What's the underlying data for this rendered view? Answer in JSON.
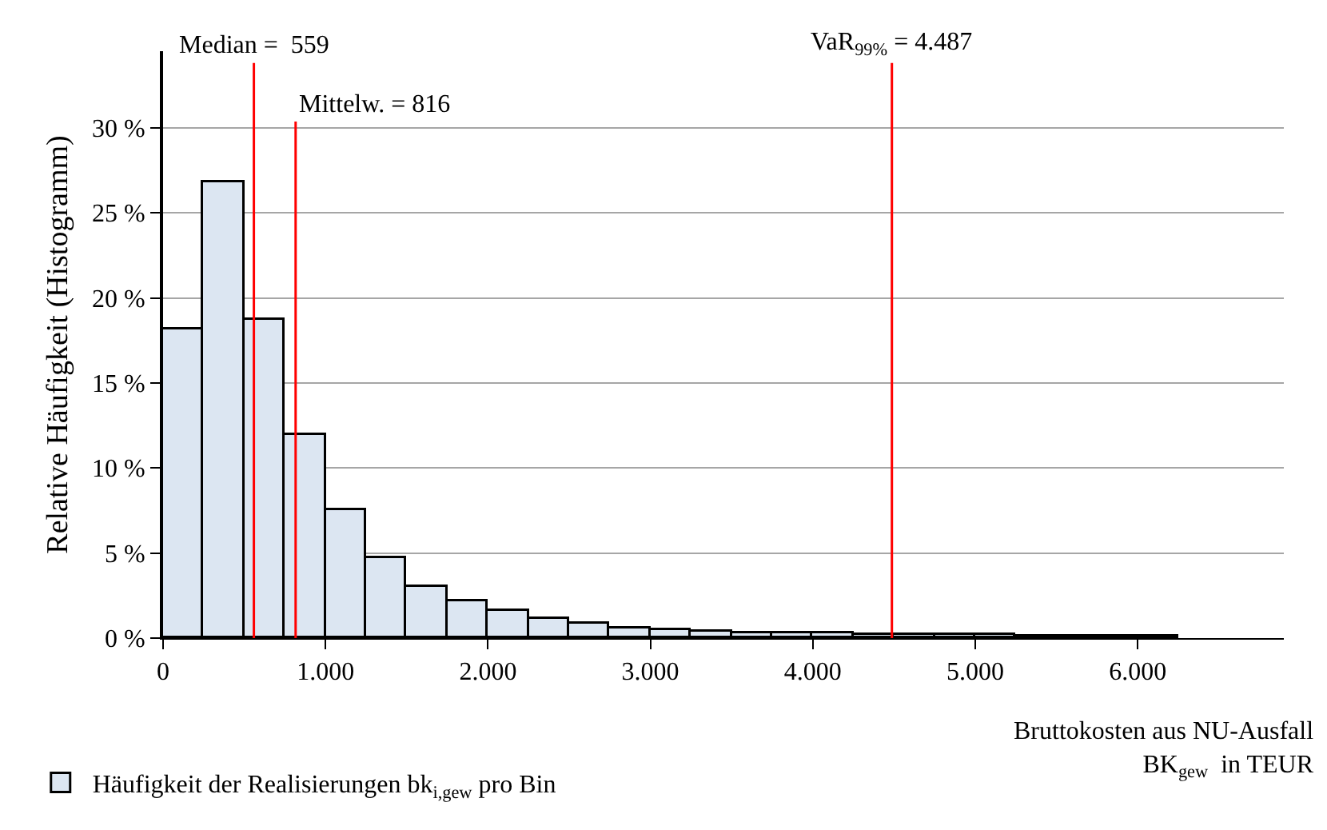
{
  "chart_data": {
    "type": "histogram",
    "ylabel": "Relative Häufigkeit (Histogramm)",
    "xlabel": "Bruttokosten aus NU-Ausfall\nBK$_{gew}$  in TEUR",
    "bins": [
      0,
      250,
      500,
      750,
      1000,
      1250,
      1500,
      1750,
      2000,
      2250,
      2500,
      2750,
      3000,
      3250,
      3500,
      3750,
      4000,
      4250,
      4500,
      4750,
      5000,
      5250,
      5500,
      5750,
      6000,
      6250
    ],
    "series": [
      {
        "name": "Häufigkeit der Realisierungen bk$_{i,gew}$ pro Bin",
        "color": "#dce6f2",
        "values": [
          18.1,
          26.8,
          18.7,
          11.9,
          7.5,
          4.7,
          3.0,
          2.2,
          1.6,
          1.1,
          0.8,
          0.6,
          0.5,
          0.4,
          0.3,
          0.3,
          0.3,
          0.2,
          0.2,
          0.2,
          0.2,
          0.1,
          0.1,
          0.1,
          0.1
        ]
      }
    ],
    "xlim": [
      0,
      6900
    ],
    "xticks": [
      0,
      {
        "value": 1000,
        "label": "1.000"
      },
      {
        "value": 2000,
        "label": "2.000"
      },
      {
        "value": 3000,
        "label": "3.000"
      },
      {
        "value": 4000,
        "label": "4.000"
      },
      {
        "value": 5000,
        "label": "5.000"
      },
      {
        "value": 6000,
        "label": "6.000"
      }
    ],
    "ylim": [
      0,
      34.5
    ],
    "yticks": [
      {
        "value": 0,
        "label": "0 %"
      },
      {
        "value": 5,
        "label": "5 %"
      },
      {
        "value": 10,
        "label": "10 %"
      },
      {
        "value": 15,
        "label": "15 %"
      },
      {
        "value": 20,
        "label": "20 %"
      },
      {
        "value": 25,
        "label": "25 %"
      },
      {
        "value": 30,
        "label": "30 %"
      }
    ],
    "ref_lines": [
      {
        "axis": "x",
        "value": 559,
        "label": "Median =  559",
        "color": "#ff0000"
      },
      {
        "axis": "x",
        "value": 816,
        "label": "Mittelw. = 816",
        "color": "#ff0000"
      },
      {
        "axis": "x",
        "value": 4487,
        "label": "VaR$_{99%}$ = 4.487",
        "color": "#ff0000"
      }
    ],
    "grid": "y",
    "legend": "bottom left"
  }
}
